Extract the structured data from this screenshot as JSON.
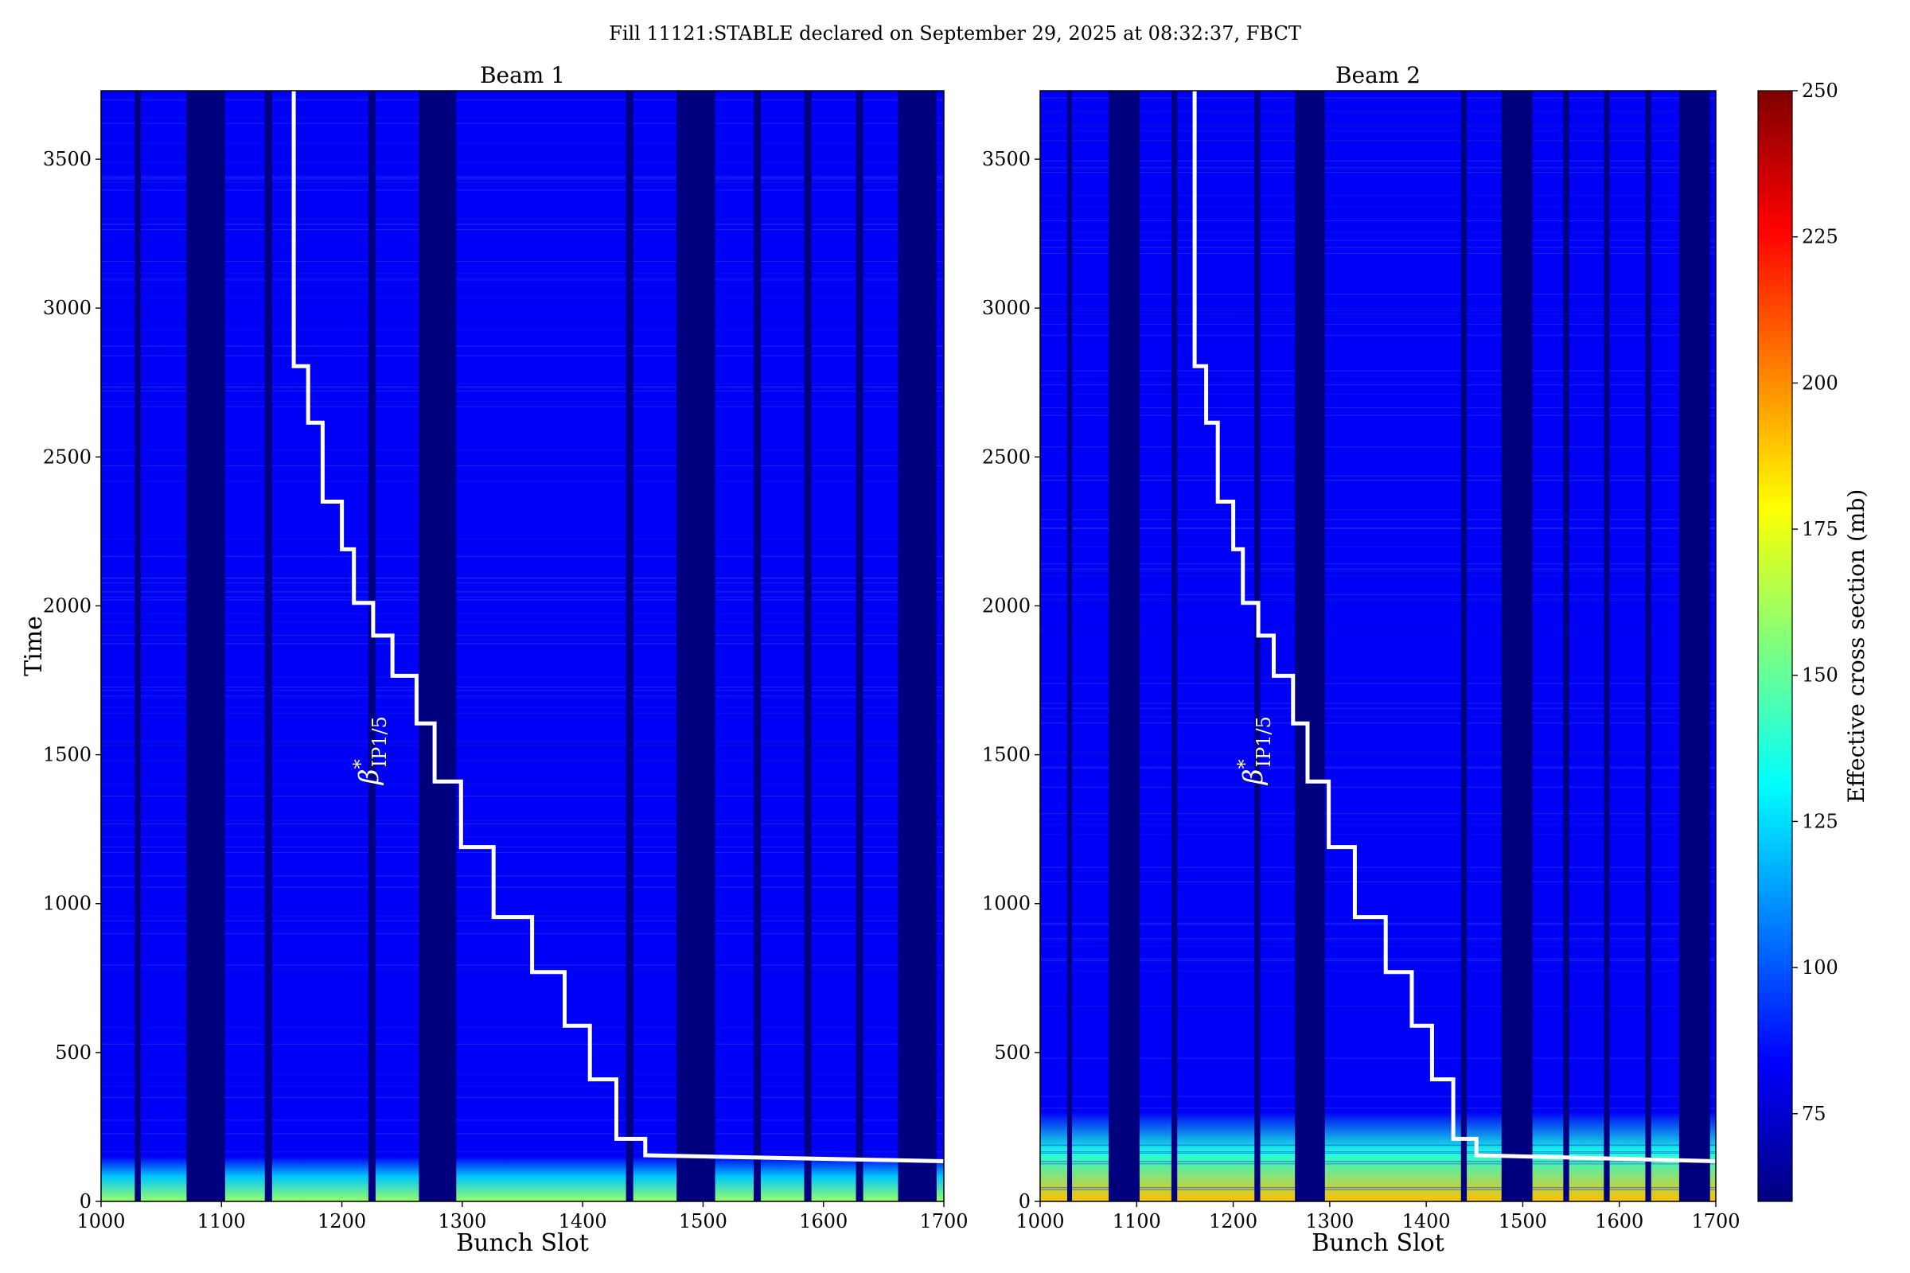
{
  "suptitle": "Fill 11121:STABLE declared on September 29, 2025 at 08:32:37, FBCT",
  "colors": {
    "empty_slot": "#00007f",
    "overlay_line": "#ffffff",
    "colormap": [
      "#00007f",
      "#0000ff",
      "#007fff",
      "#00ffff",
      "#7fff7f",
      "#ffff00",
      "#ff7f00",
      "#ff0000",
      "#7f0000"
    ]
  },
  "colorbar": {
    "label": "Effective cross section (mb)",
    "range": [
      60,
      250
    ],
    "ticks": [
      "75",
      "100",
      "125",
      "150",
      "175",
      "200",
      "225",
      "250"
    ]
  },
  "annotation": {
    "beta": "β",
    "star": "*",
    "sub": "IP1/5"
  },
  "chart_data": [
    {
      "type": "heatmap",
      "title": "Beam 1",
      "xlabel": "Bunch Slot",
      "ylabel": "Time",
      "xlim": [
        1000,
        1700
      ],
      "ylim": [
        0,
        3730
      ],
      "xticks": [
        "1000",
        "1100",
        "1200",
        "1300",
        "1400",
        "1500",
        "1600",
        "1700"
      ],
      "yticks": [
        "0",
        "500",
        "1000",
        "1500",
        "2000",
        "2500",
        "3000",
        "3500"
      ],
      "empty_slot_ranges": [
        [
          1028,
          1033
        ],
        [
          1071,
          1103
        ],
        [
          1136,
          1142
        ],
        [
          1222,
          1228
        ],
        [
          1264,
          1295
        ],
        [
          1436,
          1442
        ],
        [
          1478,
          1510
        ],
        [
          1542,
          1548
        ],
        [
          1584,
          1590
        ],
        [
          1627,
          1633
        ],
        [
          1662,
          1694
        ]
      ],
      "bulk_value": 82,
      "early_band": {
        "time_max": 150,
        "value": 160
      },
      "beta_star_steps": {
        "x": [
          1160,
          1160,
          1172,
          1172,
          1184,
          1184,
          1200,
          1200,
          1210,
          1210,
          1226,
          1226,
          1242,
          1242,
          1262,
          1262,
          1277,
          1277,
          1299,
          1299,
          1326,
          1326,
          1358,
          1358,
          1385,
          1385,
          1406,
          1406,
          1428,
          1428,
          1452,
          1452,
          1700
        ],
        "y": [
          3730,
          2805,
          2805,
          2615,
          2615,
          2350,
          2350,
          2190,
          2190,
          2010,
          2010,
          1900,
          1900,
          1765,
          1765,
          1605,
          1605,
          1410,
          1410,
          1190,
          1190,
          955,
          955,
          770,
          770,
          590,
          590,
          410,
          410,
          210,
          210,
          155,
          135
        ]
      }
    },
    {
      "type": "heatmap",
      "title": "Beam 2",
      "xlabel": "Bunch Slot",
      "ylabel": "",
      "xlim": [
        1000,
        1700
      ],
      "ylim": [
        0,
        3730
      ],
      "xticks": [
        "1000",
        "1100",
        "1200",
        "1300",
        "1400",
        "1500",
        "1600",
        "1700"
      ],
      "yticks": [
        "0",
        "500",
        "1000",
        "1500",
        "2000",
        "2500",
        "3000",
        "3500"
      ],
      "empty_slot_ranges": [
        [
          1028,
          1033
        ],
        [
          1071,
          1103
        ],
        [
          1136,
          1142
        ],
        [
          1222,
          1228
        ],
        [
          1264,
          1295
        ],
        [
          1436,
          1442
        ],
        [
          1478,
          1510
        ],
        [
          1542,
          1548
        ],
        [
          1584,
          1590
        ],
        [
          1627,
          1633
        ],
        [
          1662,
          1694
        ]
      ],
      "bulk_value": 82,
      "early_band": {
        "time_max": 300,
        "value": 190
      },
      "beta_star_steps": {
        "x": [
          1160,
          1160,
          1172,
          1172,
          1184,
          1184,
          1200,
          1200,
          1210,
          1210,
          1226,
          1226,
          1242,
          1242,
          1262,
          1262,
          1277,
          1277,
          1299,
          1299,
          1326,
          1326,
          1358,
          1358,
          1385,
          1385,
          1406,
          1406,
          1428,
          1428,
          1452,
          1452,
          1700
        ],
        "y": [
          3730,
          2805,
          2805,
          2615,
          2615,
          2350,
          2350,
          2190,
          2190,
          2010,
          2010,
          1900,
          1900,
          1765,
          1765,
          1605,
          1605,
          1410,
          1410,
          1190,
          1190,
          955,
          955,
          770,
          770,
          590,
          590,
          410,
          410,
          210,
          210,
          155,
          135
        ]
      }
    }
  ]
}
